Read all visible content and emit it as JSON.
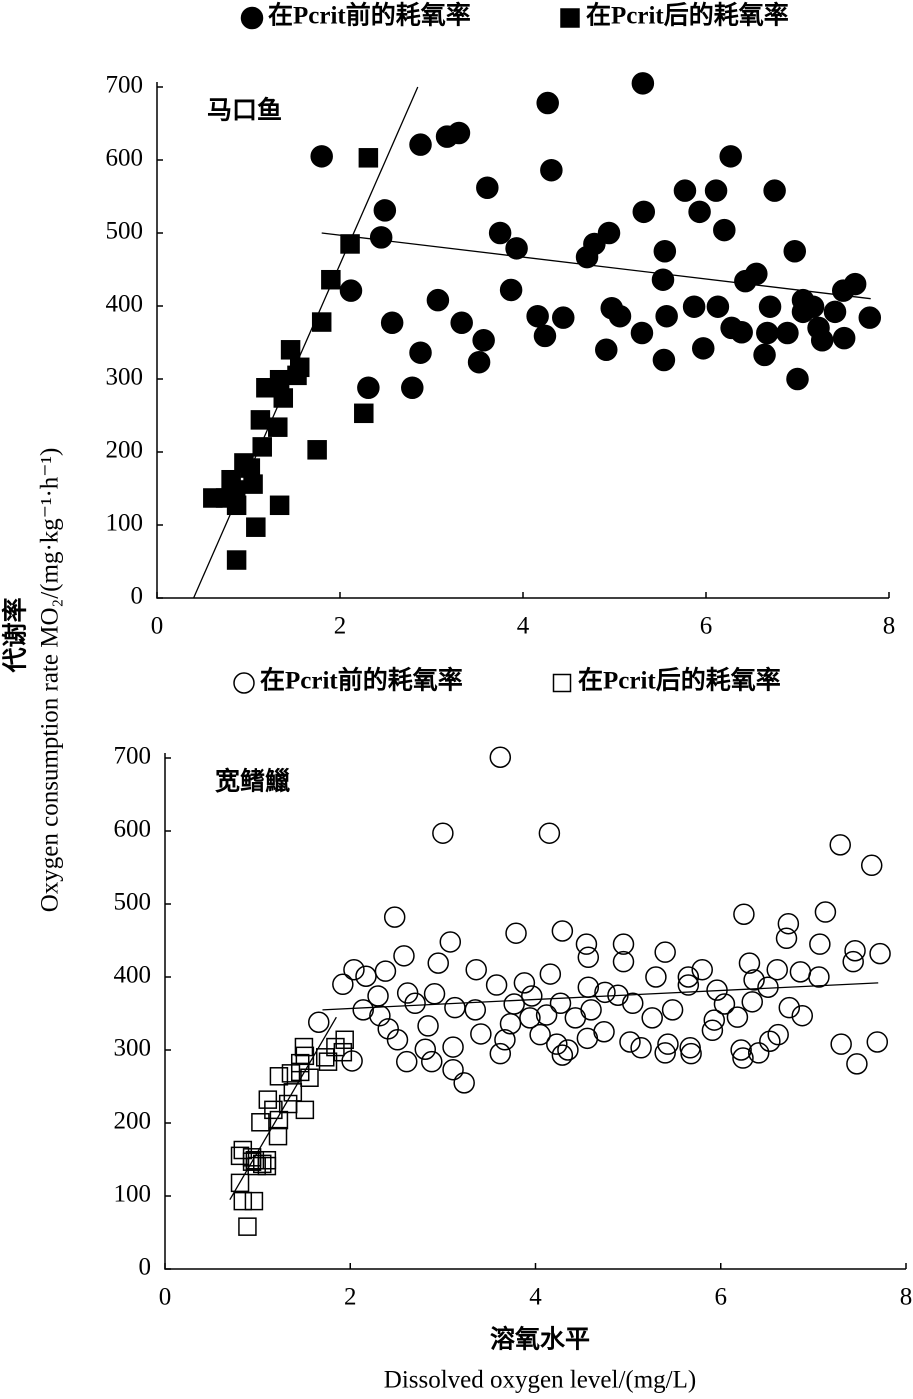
{
  "y_label_zh": "代谢率",
  "y_label_en": "Oxygen consumption rate MO₂/(mg·kg⁻¹·h⁻¹)",
  "x_label_zh": "溶氧水平",
  "x_label_en": "Dissolved oxygen level/(mg/L)",
  "chart_data": [
    {
      "type": "scatter",
      "panel_label": "马口鱼",
      "xlim": [
        0,
        8
      ],
      "ylim": [
        0,
        700
      ],
      "xticks": [
        0,
        2,
        4,
        6,
        8
      ],
      "yticks": [
        0,
        100,
        200,
        300,
        400,
        500,
        600,
        700
      ],
      "series": [
        {
          "name": "在Pcrit前的耗氧率",
          "marker": "circle",
          "filled": true,
          "color": "#000000",
          "x": [
            1.8,
            2.49,
            2.45,
            2.12,
            2.31,
            2.57,
            2.88,
            3.17,
            3.3,
            3.07,
            3.33,
            2.79,
            2.88,
            3.61,
            3.75,
            3.57,
            3.52,
            3.87,
            3.93,
            4.27,
            4.31,
            4.16,
            4.24,
            4.44,
            4.7,
            4.78,
            4.94,
            4.91,
            4.97,
            5.06,
            5.31,
            5.32,
            5.3,
            5.55,
            5.53,
            5.57,
            5.54,
            5.77,
            5.93,
            6.11,
            5.87,
            5.97,
            6.13,
            6.2,
            6.27,
            6.28,
            6.39,
            6.43,
            6.55,
            6.75,
            6.7,
            6.67,
            6.64,
            6.89,
            6.97,
            7.0,
            7.06,
            7.06,
            7.17,
            7.23,
            7.27,
            7.41,
            7.5,
            7.63,
            7.51,
            7.79
          ],
          "values": [
            605,
            531,
            494,
            421,
            288,
            377,
            621,
            632,
            637,
            408,
            377,
            288,
            336,
            562,
            500,
            353,
            323,
            422,
            479,
            678,
            586,
            386,
            359,
            384,
            467,
            485,
            500,
            340,
            397,
            386,
            705,
            529,
            363,
            475,
            436,
            386,
            326,
            558,
            529,
            558,
            399,
            342,
            399,
            504,
            605,
            370,
            364,
            434,
            444,
            558,
            399,
            363,
            333,
            363,
            475,
            300,
            408,
            392,
            399,
            370,
            353,
            392,
            421,
            430,
            356,
            384
          ]
        },
        {
          "name": "在Pcrit后的耗氧率",
          "marker": "square",
          "filled": true,
          "color": "#000000",
          "x": [
            0.61,
            0.75,
            0.81,
            0.95,
            0.86,
            1.02,
            0.87,
            1.05,
            0.87,
            1.08,
            1.15,
            1.13,
            1.19,
            1.34,
            1.32,
            1.34,
            1.38,
            1.46,
            1.53,
            1.56,
            1.75,
            1.8,
            1.9,
            2.11,
            2.26,
            2.31
          ],
          "values": [
            137,
            137,
            162,
            185,
            148,
            178,
            127,
            156,
            52,
            97,
            207,
            244,
            288,
            299,
            234,
            127,
            274,
            340,
            305,
            316,
            203,
            378,
            436,
            485,
            253,
            603
          ]
        }
      ],
      "fit_lines": [
        {
          "x": [
            0.4,
            2.85
          ],
          "y": [
            0,
            700
          ]
        },
        {
          "x": [
            1.8,
            7.8
          ],
          "y": [
            500,
            410
          ]
        }
      ]
    },
    {
      "type": "scatter",
      "panel_label": "宽鳍鱲",
      "xlim": [
        0,
        8
      ],
      "ylim": [
        0,
        700
      ],
      "xticks": [
        0,
        2,
        4,
        6,
        8
      ],
      "yticks": [
        0,
        100,
        200,
        300,
        400,
        500,
        600,
        700
      ],
      "series": [
        {
          "name": "在Pcrit前的耗氧率",
          "marker": "circle",
          "filled": false,
          "color": "#000000",
          "x": [
            3.62,
            3.0,
            4.15,
            7.29,
            7.63,
            2.48,
            6.25,
            7.13,
            6.73,
            3.79,
            4.29,
            3.08,
            2.58,
            2.95,
            4.55,
            4.57,
            4.95,
            4.95,
            5.4,
            6.71,
            7.07,
            7.45,
            7.72,
            2.04,
            2.17,
            2.38,
            3.36,
            4.16,
            4.57,
            5.3,
            5.65,
            5.8,
            6.31,
            6.36,
            6.61,
            6.86,
            7.06,
            7.43,
            1.92,
            2.3,
            2.62,
            2.91,
            3.58,
            3.88,
            3.96,
            4.75,
            4.89,
            5.65,
            5.96,
            6.51,
            2.14,
            2.32,
            2.7,
            3.13,
            3.35,
            3.77,
            3.94,
            4.12,
            4.27,
            4.43,
            4.6,
            5.05,
            5.26,
            5.48,
            5.93,
            6.04,
            6.34,
            6.74,
            6.88,
            1.66,
            2.41,
            2.84,
            3.41,
            3.73,
            4.05,
            4.74,
            5.91,
            6.18,
            2.51,
            2.81,
            3.11,
            3.67,
            4.23,
            4.35,
            4.56,
            5.02,
            5.14,
            5.43,
            5.67,
            6.22,
            6.53,
            6.62,
            7.3,
            7.69,
            2.61,
            2.88,
            2.02,
            3.62,
            4.29,
            5.4,
            5.68,
            6.24,
            6.41,
            3.11,
            3.23,
            7.47
          ],
          "values": [
            701,
            597,
            597,
            581,
            553,
            482,
            486,
            489,
            473,
            460,
            463,
            448,
            429,
            419,
            445,
            427,
            445,
            421,
            434,
            453,
            445,
            436,
            432,
            410,
            401,
            408,
            410,
            404,
            386,
            400,
            400,
            410,
            419,
            396,
            410,
            407,
            400,
            421,
            390,
            374,
            378,
            377,
            389,
            392,
            374,
            379,
            375,
            389,
            382,
            386,
            355,
            347,
            364,
            358,
            355,
            363,
            344,
            348,
            364,
            344,
            355,
            364,
            344,
            355,
            341,
            363,
            366,
            358,
            347,
            338,
            329,
            333,
            322,
            336,
            321,
            325,
            327,
            345,
            314,
            301,
            304,
            314,
            308,
            300,
            316,
            311,
            303,
            308,
            303,
            300,
            312,
            321,
            308,
            311,
            284,
            284,
            285,
            295,
            293,
            296,
            295,
            289,
            296,
            273,
            255,
            281
          ]
        },
        {
          "name": "在Pcrit后的耗氧率",
          "marker": "square",
          "filled": false,
          "color": "#000000",
          "x": [
            0.89,
            0.96,
            0.84,
            0.81,
            0.81,
            0.84,
            0.94,
            0.94,
            0.97,
            1.1,
            1.05,
            1.1,
            0.99,
            1.11,
            1.17,
            1.23,
            1.03,
            1.22,
            1.33,
            1.38,
            1.23,
            1.36,
            1.51,
            1.46,
            1.51,
            1.46,
            1.56,
            1.5,
            1.73,
            1.76,
            1.92,
            1.94,
            1.84
          ],
          "values": [
            58,
            93,
            93,
            118,
            155,
            163,
            147,
            153,
            149,
            149,
            144,
            141,
            141,
            232,
            218,
            204,
            201,
            182,
            226,
            242,
            264,
            268,
            218,
            270,
            292,
            282,
            262,
            304,
            290,
            284,
            297,
            314,
            304
          ]
        }
      ],
      "fit_lines": [
        {
          "x": [
            0.7,
            1.85
          ],
          "y": [
            95,
            345
          ]
        },
        {
          "x": [
            1.7,
            7.7
          ],
          "y": [
            355,
            392
          ]
        }
      ]
    }
  ]
}
